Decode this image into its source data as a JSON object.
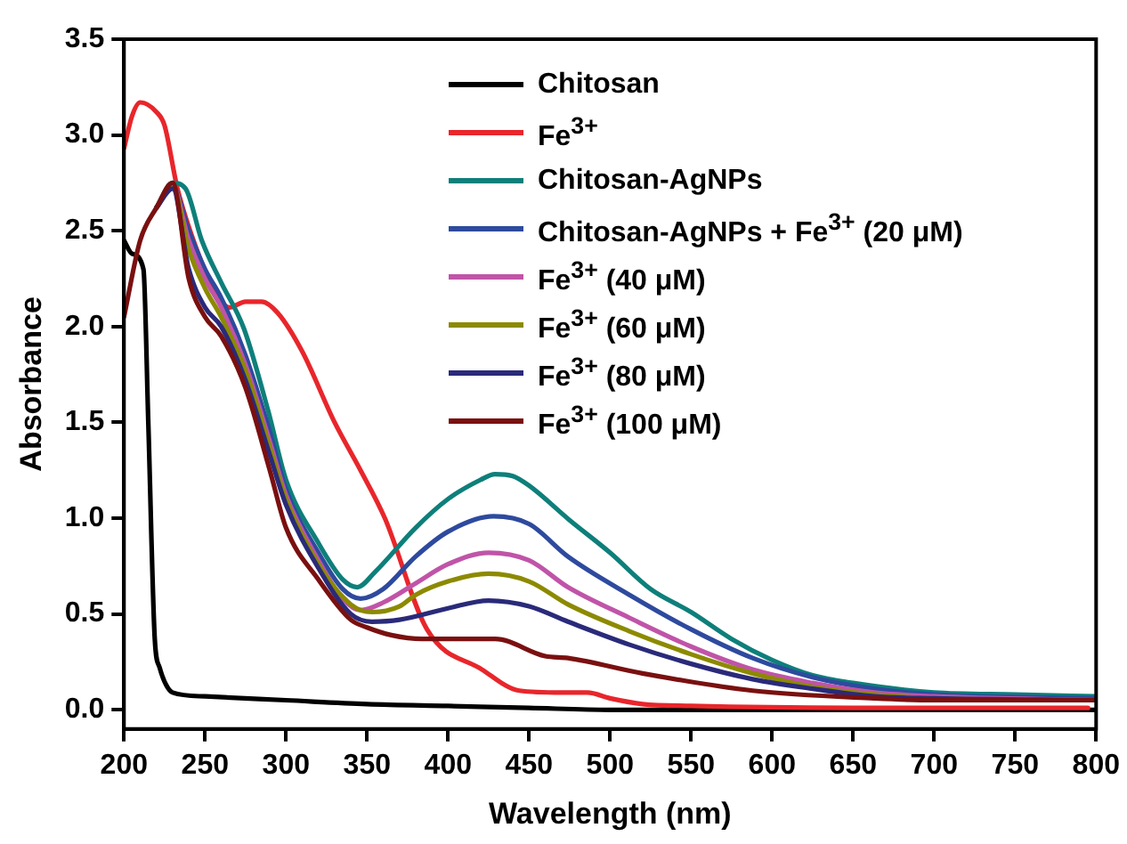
{
  "chart_data": {
    "type": "line",
    "xlabel": "Wavelength (nm)",
    "ylabel": "Absorbance",
    "xlim": [
      200,
      800
    ],
    "ylim": [
      -0.1,
      3.5
    ],
    "xticks": [
      200,
      250,
      300,
      350,
      400,
      450,
      500,
      550,
      600,
      650,
      700,
      750,
      800
    ],
    "yticks": [
      {
        "value": 0,
        "label": "0.0"
      },
      0.5,
      {
        "value": 1,
        "label": "1.0"
      },
      1.5,
      {
        "value": 2,
        "label": "2.0"
      },
      2.5,
      {
        "value": 3,
        "label": "3.0"
      },
      3.5
    ],
    "grid": false,
    "legend": "top right",
    "marker": "none",
    "line_style": "solid",
    "series": [
      {
        "name": "Chitosan",
        "color": "#000000",
        "x": [
          200,
          205,
          212,
          215,
          219,
          222,
          226,
          230,
          250,
          300,
          350,
          400,
          450,
          500,
          600,
          800
        ],
        "values": [
          2.45,
          2.38,
          2.3,
          1.5,
          0.37,
          0.22,
          0.13,
          0.09,
          0.07,
          0.05,
          0.03,
          0.02,
          0.01,
          0.0,
          0.0,
          0.0
        ]
      },
      {
        "name": "Fe$^{3+}$",
        "color": "#e8262b",
        "x": [
          200,
          205,
          210,
          220,
          225,
          233,
          245,
          255,
          265,
          275,
          285,
          295,
          310,
          330,
          346,
          361,
          387,
          421,
          444,
          470,
          486,
          500,
          520,
          550,
          650,
          795
        ],
        "values": [
          2.93,
          3.1,
          3.17,
          3.12,
          3.05,
          2.72,
          2.4,
          2.2,
          2.1,
          2.13,
          2.13,
          2.07,
          1.87,
          1.5,
          1.25,
          1.0,
          0.42,
          0.21,
          0.1,
          0.09,
          0.09,
          0.06,
          0.03,
          0.02,
          0.01,
          0.01
        ]
      },
      {
        "name": "Chitosan-AgNPs",
        "color": "#0e7f7a",
        "x": [
          220,
          230,
          238,
          248,
          260,
          274,
          289,
          300,
          320,
          335,
          344,
          355,
          380,
          400,
          420,
          429,
          440,
          450,
          475,
          500,
          525,
          550,
          575,
          600,
          625,
          650,
          700,
          750,
          800
        ],
        "values": [
          2.62,
          2.75,
          2.72,
          2.45,
          2.23,
          1.99,
          1.56,
          1.2,
          0.87,
          0.68,
          0.64,
          0.72,
          0.95,
          1.1,
          1.2,
          1.23,
          1.22,
          1.17,
          0.99,
          0.82,
          0.63,
          0.51,
          0.37,
          0.26,
          0.18,
          0.14,
          0.09,
          0.08,
          0.07
        ]
      },
      {
        "name": "Chitosan-AgNPs + Fe$^{3+}$ (20 μM)",
        "color": "#2e4a9e",
        "x": [
          220,
          230,
          240,
          250,
          260,
          275,
          290,
          300,
          320,
          335,
          346,
          360,
          380,
          400,
          428,
          450,
          474,
          512,
          550,
          588,
          625,
          663,
          700,
          800
        ],
        "values": [
          2.62,
          2.73,
          2.5,
          2.3,
          2.15,
          1.85,
          1.45,
          1.15,
          0.82,
          0.63,
          0.58,
          0.63,
          0.8,
          0.93,
          1.01,
          0.97,
          0.8,
          0.6,
          0.42,
          0.27,
          0.17,
          0.11,
          0.08,
          0.06
        ]
      },
      {
        "name": "Fe$^{3+}$ (40 μM)",
        "color": "#c054a8",
        "x": [
          220,
          230,
          240,
          250,
          260,
          275,
          290,
          300,
          320,
          335,
          346,
          360,
          380,
          400,
          425,
          450,
          474,
          512,
          550,
          588,
          625,
          663,
          700,
          800
        ],
        "values": [
          2.62,
          2.73,
          2.45,
          2.25,
          2.1,
          1.8,
          1.4,
          1.12,
          0.78,
          0.58,
          0.52,
          0.56,
          0.66,
          0.76,
          0.82,
          0.78,
          0.64,
          0.48,
          0.33,
          0.21,
          0.14,
          0.09,
          0.07,
          0.05
        ]
      },
      {
        "name": "Fe$^{3+}$ (60 μM)",
        "color": "#8c8a00",
        "x": [
          220,
          230,
          240,
          250,
          260,
          275,
          290,
          300,
          320,
          340,
          353,
          370,
          380,
          400,
          425,
          450,
          474,
          512,
          550,
          588,
          625,
          663,
          700,
          800
        ],
        "values": [
          2.62,
          2.73,
          2.4,
          2.2,
          2.05,
          1.77,
          1.37,
          1.1,
          0.76,
          0.55,
          0.51,
          0.54,
          0.6,
          0.67,
          0.71,
          0.67,
          0.55,
          0.41,
          0.29,
          0.19,
          0.12,
          0.08,
          0.06,
          0.05
        ]
      },
      {
        "name": "Fe$^{3+}$ (80 μM)",
        "color": "#2a2a7a",
        "x": [
          220,
          230,
          240,
          250,
          260,
          275,
          290,
          300,
          320,
          340,
          353,
          370,
          400,
          425,
          450,
          474,
          512,
          550,
          588,
          625,
          663,
          700,
          800
        ],
        "values": [
          2.62,
          2.72,
          2.3,
          2.1,
          2.0,
          1.72,
          1.33,
          1.07,
          0.74,
          0.5,
          0.46,
          0.47,
          0.53,
          0.57,
          0.54,
          0.46,
          0.34,
          0.24,
          0.16,
          0.11,
          0.07,
          0.06,
          0.05
        ]
      },
      {
        "name": "Fe$^{3+}$ (100 μM)",
        "color": "#7a1010",
        "x": [
          200,
          210,
          220,
          230,
          240,
          250,
          260,
          275,
          290,
          300,
          320,
          340,
          350,
          365,
          384,
          429,
          460,
          474,
          520,
          588,
          663,
          700,
          800
        ],
        "values": [
          2.05,
          2.45,
          2.62,
          2.75,
          2.25,
          2.05,
          1.95,
          1.68,
          1.25,
          0.95,
          0.68,
          0.47,
          0.43,
          0.39,
          0.37,
          0.37,
          0.28,
          0.27,
          0.19,
          0.1,
          0.06,
          0.05,
          0.05
        ]
      }
    ]
  }
}
